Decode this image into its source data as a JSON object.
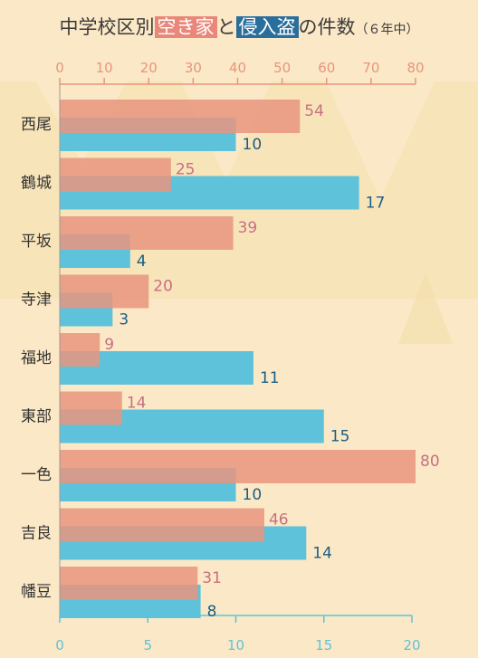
{
  "title": {
    "prefix": "中学校区別",
    "highlight1": "空き家",
    "conj": "と",
    "highlight2": "侵入盗",
    "middle": "の件数",
    "suffix": "（６年中）"
  },
  "colors": {
    "background": "#fbe8c6",
    "vacant": "#e8957e",
    "vacant_label": "#c86f83",
    "burglary": "#5ec2da",
    "burglary_label": "#1a5e85",
    "top_axis": "#e8957e",
    "bottom_axis": "#5ec2da",
    "title_hl1": "#e8877a",
    "title_hl2": "#2a6e9c"
  },
  "chart_data": {
    "type": "bar",
    "orientation": "horizontal",
    "categories": [
      "西尾",
      "鶴城",
      "平坂",
      "寺津",
      "福地",
      "東部",
      "一色",
      "吉良",
      "幡豆"
    ],
    "series": [
      {
        "name": "空き家",
        "axis": "top",
        "values": [
          54,
          25,
          39,
          20,
          9,
          14,
          80,
          46,
          31
        ]
      },
      {
        "name": "侵入盗",
        "axis": "bottom",
        "values": [
          10,
          17,
          4,
          3,
          11,
          15,
          10,
          14,
          8
        ]
      }
    ],
    "top_axis": {
      "range": [
        0,
        80
      ],
      "ticks": [
        0,
        10,
        20,
        30,
        40,
        50,
        60,
        70,
        80
      ]
    },
    "bottom_axis": {
      "range": [
        0,
        20
      ],
      "ticks": [
        0,
        5,
        10,
        15,
        20
      ]
    },
    "grid": false,
    "legend": "none"
  }
}
